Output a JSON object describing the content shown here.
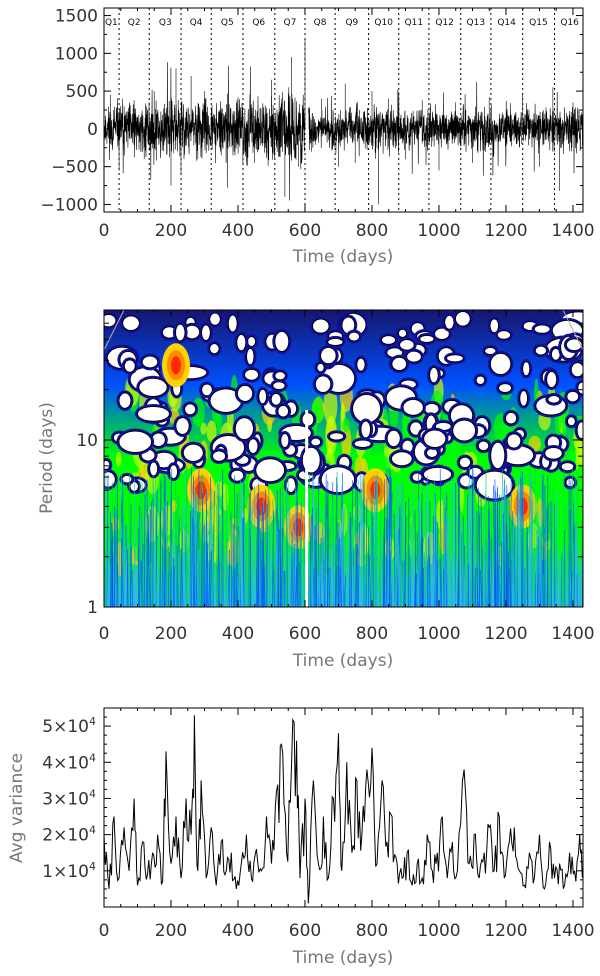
{
  "chart_data": [
    {
      "type": "line",
      "title": "",
      "xlabel": "Time (days)",
      "ylabel": "",
      "xlim": [
        0,
        1430
      ],
      "ylim": [
        -1100,
        1600
      ],
      "x_ticks": [
        "0",
        "200",
        "400",
        "600",
        "800",
        "1000",
        "1200",
        "1400"
      ],
      "x_tick_values": [
        0,
        200,
        400,
        600,
        800,
        1000,
        1200,
        1400
      ],
      "y_ticks": [
        "1500",
        "1000",
        "500",
        "0",
        "−500",
        "−1000"
      ],
      "y_tick_values": [
        1500,
        1000,
        500,
        0,
        -500,
        -1000
      ],
      "quarter_boundaries": [
        45,
        135,
        230,
        320,
        415,
        510,
        600,
        690,
        790,
        880,
        970,
        1065,
        1155,
        1250,
        1345
      ],
      "quarters": [
        {
          "label": "Q1",
          "x": 22
        },
        {
          "label": "Q2",
          "x": 90
        },
        {
          "label": "Q3",
          "x": 183
        },
        {
          "label": "Q4",
          "x": 275
        },
        {
          "label": "Q5",
          "x": 368
        },
        {
          "label": "Q6",
          "x": 462
        },
        {
          "label": "Q7",
          "x": 555
        },
        {
          "label": "Q8",
          "x": 645
        },
        {
          "label": "Q9",
          "x": 740
        },
        {
          "label": "Q10",
          "x": 835
        },
        {
          "label": "Q11",
          "x": 925
        },
        {
          "label": "Q12",
          "x": 1017
        },
        {
          "label": "Q13",
          "x": 1110
        },
        {
          "label": "Q14",
          "x": 1202
        },
        {
          "label": "Q15",
          "x": 1297
        },
        {
          "label": "Q16",
          "x": 1390
        }
      ],
      "series": [
        {
          "color": "#000000",
          "x": [
            0,
            20,
            45,
            60,
            90,
            120,
            150,
            200,
            215,
            230,
            260,
            280,
            300,
            350,
            400,
            450,
            500,
            540,
            560,
            580,
            600,
            620,
            650,
            700,
            720,
            750,
            800,
            820,
            850,
            900,
            950,
            1000,
            1050,
            1100,
            1150,
            1200,
            1250,
            1300,
            1340,
            1360,
            1400,
            1430
          ],
          "values": [
            0,
            450,
            -550,
            300,
            380,
            -400,
            500,
            -750,
            800,
            -600,
            700,
            -400,
            500,
            -350,
            420,
            -450,
            650,
            -900,
            950,
            -500,
            1200,
            -300,
            400,
            -500,
            600,
            -450,
            500,
            -1000,
            400,
            -400,
            380,
            -550,
            350,
            -450,
            420,
            -380,
            450,
            -500,
            550,
            -820,
            350,
            0
          ],
          "envelope": [
            {
              "x": 0,
              "amp": 380
            },
            {
              "x": 200,
              "amp": 520
            },
            {
              "x": 300,
              "amp": 450
            },
            {
              "x": 500,
              "amp": 500
            },
            {
              "x": 590,
              "amp": 650
            },
            {
              "x": 620,
              "amp": 280
            },
            {
              "x": 800,
              "amp": 380
            },
            {
              "x": 1000,
              "amp": 330
            },
            {
              "x": 1200,
              "amp": 360
            },
            {
              "x": 1430,
              "amp": 330
            }
          ]
        }
      ]
    },
    {
      "type": "heatmap",
      "title": "",
      "xlabel": "Time (days)",
      "ylabel": "Period (days)",
      "xlim": [
        0,
        1430
      ],
      "ylim": [
        1,
        60
      ],
      "y_scale": "log",
      "x_ticks": [
        "0",
        "200",
        "400",
        "600",
        "800",
        "1000",
        "1200",
        "1400"
      ],
      "x_tick_values": [
        0,
        200,
        400,
        600,
        800,
        1000,
        1200,
        1400
      ],
      "y_ticks": [
        "1",
        "10"
      ],
      "y_tick_values": [
        1,
        10
      ],
      "colors": [
        "#2fb8f0",
        "#0050ff",
        "#1010a0",
        "#16166e",
        "#000000",
        "#ffffff",
        "#00ff00",
        "#ff2a00"
      ],
      "highlights": [
        {
          "x": 215,
          "period": 28
        },
        {
          "x": 290,
          "period": 5
        },
        {
          "x": 470,
          "period": 4
        },
        {
          "x": 580,
          "period": 3
        },
        {
          "x": 810,
          "period": 5
        },
        {
          "x": 1250,
          "period": 4
        }
      ]
    },
    {
      "type": "line",
      "title": "",
      "xlabel": "Time (days)",
      "ylabel": "Avg variance",
      "xlim": [
        0,
        1430
      ],
      "ylim": [
        0,
        55000
      ],
      "x_ticks": [
        "0",
        "200",
        "400",
        "600",
        "800",
        "1000",
        "1200",
        "1400"
      ],
      "x_tick_values": [
        0,
        200,
        400,
        600,
        800,
        1000,
        1200,
        1400
      ],
      "y_ticks": [
        {
          "base": "1×10",
          "exp": "4"
        },
        {
          "base": "2×10",
          "exp": "4"
        },
        {
          "base": "3×10",
          "exp": "4"
        },
        {
          "base": "4×10",
          "exp": "4"
        },
        {
          "base": "5×10",
          "exp": "4"
        }
      ],
      "y_tick_values": [
        10000,
        20000,
        30000,
        40000,
        50000
      ],
      "series": [
        {
          "color": "#000000",
          "x": [
            0,
            15,
            30,
            45,
            60,
            75,
            90,
            100,
            115,
            130,
            145,
            160,
            175,
            185,
            200,
            215,
            230,
            245,
            260,
            270,
            280,
            290,
            305,
            320,
            335,
            350,
            365,
            380,
            395,
            410,
            425,
            440,
            455,
            470,
            485,
            500,
            515,
            530,
            545,
            560,
            575,
            585,
            600,
            610,
            625,
            640,
            655,
            670,
            685,
            700,
            710,
            725,
            740,
            755,
            770,
            785,
            800,
            815,
            830,
            845,
            860,
            875,
            890,
            905,
            920,
            935,
            950,
            965,
            980,
            995,
            1010,
            1025,
            1040,
            1055,
            1075,
            1090,
            1105,
            1120,
            1135,
            1150,
            1165,
            1180,
            1195,
            1210,
            1225,
            1240,
            1255,
            1270,
            1285,
            1300,
            1315,
            1330,
            1345,
            1360,
            1375,
            1390,
            1405,
            1420,
            1430
          ],
          "values": [
            20000,
            5000,
            25000,
            8000,
            22000,
            10000,
            30000,
            6000,
            18000,
            9000,
            15000,
            20000,
            7000,
            43000,
            12000,
            25000,
            8000,
            30000,
            20000,
            53000,
            10000,
            35000,
            8000,
            22000,
            6000,
            18000,
            10000,
            15000,
            5000,
            12000,
            20000,
            8000,
            16000,
            10000,
            25000,
            12000,
            32000,
            45000,
            15000,
            40000,
            46000,
            8000,
            30000,
            1000,
            35000,
            12000,
            25000,
            8000,
            30000,
            48000,
            10000,
            40000,
            15000,
            35000,
            20000,
            38000,
            44000,
            12000,
            35000,
            18000,
            25000,
            12000,
            8000,
            15000,
            6000,
            12000,
            8000,
            20000,
            10000,
            15000,
            25000,
            8000,
            18000,
            10000,
            38000,
            12000,
            20000,
            8000,
            15000,
            22000,
            10000,
            25000,
            8000,
            18000,
            22000,
            10000,
            6000,
            15000,
            8000,
            20000,
            5000,
            18000,
            8000,
            12000,
            6000,
            15000,
            10000,
            20000,
            8000
          ]
        }
      ]
    }
  ]
}
